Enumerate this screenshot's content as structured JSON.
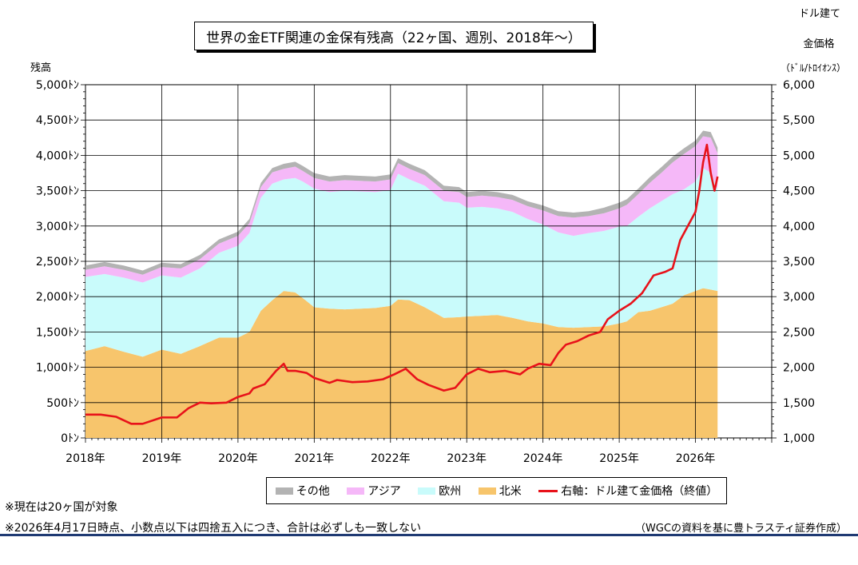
{
  "chart_data": {
    "type": "area",
    "title": "世界の金ETF関連の金保有残高（22ヶ国、週別、2018年～）",
    "ylabel_left": "残高",
    "ylabel_right": [
      "ドル建て",
      "金価格",
      "（ﾄﾞﾙ/ﾄﾛｲｵﾝｽ）"
    ],
    "left_ticks": [
      "0ﾄﾝ",
      "500ﾄﾝ",
      "1,000ﾄﾝ",
      "1,500ﾄﾝ",
      "2,000ﾄﾝ",
      "2,500ﾄﾝ",
      "3,000ﾄﾝ",
      "3,500ﾄﾝ",
      "4,000ﾄﾝ",
      "4,500ﾄﾝ",
      "5,000ﾄﾝ"
    ],
    "right_ticks": [
      "1,000",
      "1,500",
      "2,000",
      "2,500",
      "3,000",
      "3,500",
      "4,000",
      "4,500",
      "5,000",
      "5,500",
      "6,000"
    ],
    "ylim_left": [
      0,
      5000
    ],
    "ylim_right": [
      1000,
      6000
    ],
    "x_labels": [
      "2018年",
      "2019年",
      "2020年",
      "2021年",
      "2022年",
      "2023年",
      "2024年",
      "2025年",
      "2026年"
    ],
    "grid": true,
    "legend_position": "bottom",
    "x": [
      2018.0,
      2018.25,
      2018.5,
      2018.75,
      2019.0,
      2019.25,
      2019.5,
      2019.75,
      2020.0,
      2020.15,
      2020.3,
      2020.45,
      2020.6,
      2020.75,
      2020.85,
      2021.0,
      2021.2,
      2021.4,
      2021.6,
      2021.8,
      2022.0,
      2022.1,
      2022.25,
      2022.45,
      2022.7,
      2022.9,
      2023.0,
      2023.2,
      2023.4,
      2023.6,
      2023.8,
      2024.0,
      2024.2,
      2024.4,
      2024.6,
      2024.8,
      2025.0,
      2025.1,
      2025.25,
      2025.4,
      2025.55,
      2025.7,
      2025.85,
      2026.0,
      2026.1,
      2026.2,
      2026.29
    ],
    "series": [
      {
        "name": "北米",
        "color": "#f7c56c",
        "values": [
          1230,
          1300,
          1220,
          1150,
          1250,
          1190,
          1300,
          1420,
          1420,
          1500,
          1800,
          1950,
          2080,
          2060,
          1980,
          1850,
          1830,
          1820,
          1830,
          1840,
          1870,
          1960,
          1950,
          1850,
          1700,
          1710,
          1720,
          1730,
          1740,
          1700,
          1650,
          1620,
          1570,
          1560,
          1570,
          1580,
          1620,
          1650,
          1780,
          1800,
          1850,
          1900,
          2020,
          2080,
          2120,
          2100,
          2080
        ]
      },
      {
        "name": "欧州",
        "color": "#c9fbfb",
        "values": [
          1050,
          1020,
          1050,
          1050,
          1050,
          1080,
          1100,
          1200,
          1300,
          1400,
          1600,
          1650,
          1580,
          1620,
          1650,
          1680,
          1650,
          1680,
          1660,
          1640,
          1640,
          1780,
          1710,
          1720,
          1650,
          1620,
          1540,
          1540,
          1510,
          1500,
          1450,
          1400,
          1340,
          1300,
          1330,
          1350,
          1370,
          1350,
          1350,
          1450,
          1500,
          1550,
          1500,
          1550,
          1700,
          1650,
          1450
        ]
      },
      {
        "name": "アジア",
        "color": "#f5b8f8",
        "values": [
          100,
          110,
          110,
          110,
          120,
          130,
          130,
          130,
          140,
          140,
          150,
          160,
          150,
          160,
          150,
          150,
          150,
          150,
          150,
          150,
          150,
          150,
          150,
          150,
          150,
          150,
          150,
          160,
          160,
          170,
          180,
          200,
          230,
          260,
          240,
          250,
          260,
          300,
          320,
          360,
          400,
          450,
          500,
          500,
          450,
          500,
          500
        ]
      },
      {
        "name": "その他",
        "color": "#b3b3b3",
        "values": [
          60,
          60,
          60,
          60,
          60,
          60,
          60,
          60,
          60,
          60,
          60,
          60,
          70,
          70,
          70,
          70,
          70,
          70,
          70,
          70,
          70,
          70,
          70,
          70,
          70,
          70,
          70,
          70,
          70,
          70,
          70,
          70,
          70,
          70,
          70,
          80,
          80,
          80,
          80,
          80,
          80,
          80,
          80,
          80,
          80,
          80,
          80
        ]
      }
    ],
    "line_series": {
      "name": "右軸：ドル建て金価格（終値）",
      "color": "#e8121a",
      "x": [
        2018.0,
        2018.2,
        2018.4,
        2018.6,
        2018.75,
        2019.0,
        2019.2,
        2019.35,
        2019.5,
        2019.65,
        2019.85,
        2020.0,
        2020.15,
        2020.2,
        2020.35,
        2020.5,
        2020.6,
        2020.65,
        2020.75,
        2020.9,
        2021.0,
        2021.2,
        2021.3,
        2021.5,
        2021.7,
        2021.9,
        2022.05,
        2022.2,
        2022.35,
        2022.5,
        2022.7,
        2022.85,
        2023.0,
        2023.15,
        2023.3,
        2023.5,
        2023.7,
        2023.8,
        2023.95,
        2024.1,
        2024.2,
        2024.3,
        2024.45,
        2024.6,
        2024.75,
        2024.85,
        2025.0,
        2025.15,
        2025.3,
        2025.45,
        2025.6,
        2025.7,
        2025.8,
        2025.9,
        2026.0,
        2026.05,
        2026.1,
        2026.15,
        2026.2,
        2026.25,
        2026.29
      ],
      "values": [
        1330,
        1330,
        1300,
        1200,
        1200,
        1290,
        1290,
        1420,
        1500,
        1490,
        1500,
        1580,
        1630,
        1700,
        1760,
        1950,
        2050,
        1950,
        1950,
        1920,
        1850,
        1780,
        1820,
        1790,
        1800,
        1830,
        1900,
        1980,
        1830,
        1750,
        1670,
        1710,
        1900,
        1980,
        1930,
        1950,
        1900,
        1980,
        2050,
        2030,
        2200,
        2320,
        2370,
        2450,
        2500,
        2680,
        2800,
        2900,
        3050,
        3300,
        3350,
        3400,
        3800,
        4000,
        4200,
        4500,
        4900,
        5150,
        4750,
        4500,
        4700
      ]
    }
  },
  "legend": [
    {
      "label": "その他",
      "color": "#b3b3b3",
      "kind": "area"
    },
    {
      "label": "アジア",
      "color": "#f5b8f8",
      "kind": "area"
    },
    {
      "label": "欧州",
      "color": "#c9fbfb",
      "kind": "area"
    },
    {
      "label": "北米",
      "color": "#f7c56c",
      "kind": "area"
    },
    {
      "label": "右軸：ドル建て金価格（終値）",
      "color": "#e8121a",
      "kind": "line"
    }
  ],
  "notes": [
    "※現在は20ヶ国が対象",
    "※2026年4月17日時点、小数点以下は四捨五入につき、合計は必ずしも一致しない"
  ],
  "source": "（WGCの資料を基に豊トラスティ証券作成）"
}
